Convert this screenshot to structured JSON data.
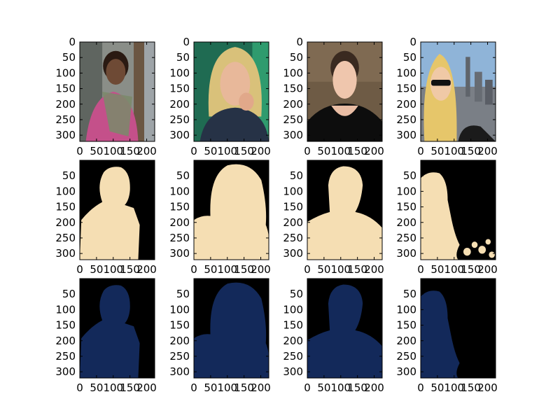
{
  "figure": {
    "background": "#ffffff",
    "rows": 3,
    "cols": 4
  },
  "colors": {
    "mask_foreground": "#f5deb3",
    "mask_background": "#000000",
    "prediction_foreground": "#13295a",
    "prediction_background": "#000000",
    "axes_frame": "#000000"
  },
  "chart_data": [
    {
      "type": "image",
      "row": 1,
      "col": 1,
      "content": "photo",
      "xlim": [
        0,
        224
      ],
      "ylim": [
        320,
        0
      ],
      "xticks": [
        "0",
        "50",
        "100",
        "150",
        "200"
      ],
      "yticks": [
        "0",
        "50",
        "100",
        "150",
        "200",
        "250",
        "300"
      ]
    },
    {
      "type": "image",
      "row": 1,
      "col": 2,
      "content": "photo",
      "xlim": [
        0,
        224
      ],
      "ylim": [
        320,
        0
      ],
      "xticks": [
        "0",
        "50",
        "100",
        "150",
        "200"
      ],
      "yticks": [
        "0",
        "50",
        "100",
        "150",
        "200",
        "250",
        "300"
      ]
    },
    {
      "type": "image",
      "row": 1,
      "col": 3,
      "content": "photo",
      "xlim": [
        0,
        224
      ],
      "ylim": [
        320,
        0
      ],
      "xticks": [
        "0",
        "50",
        "100",
        "150",
        "200"
      ],
      "yticks": [
        "0",
        "50",
        "100",
        "150",
        "200",
        "250",
        "300"
      ]
    },
    {
      "type": "image",
      "row": 1,
      "col": 4,
      "content": "photo",
      "xlim": [
        0,
        224
      ],
      "ylim": [
        320,
        0
      ],
      "xticks": [
        "0",
        "50",
        "100",
        "150",
        "200"
      ],
      "yticks": [
        "0",
        "50",
        "100",
        "150",
        "200",
        "250",
        "300"
      ]
    },
    {
      "type": "image",
      "row": 2,
      "col": 1,
      "content": "mask",
      "xlim": [
        0,
        224
      ],
      "ylim": [
        320,
        0
      ],
      "xticks": [
        "0",
        "50",
        "100",
        "150",
        "200"
      ],
      "yticks": [
        "50",
        "100",
        "150",
        "200",
        "250",
        "300"
      ]
    },
    {
      "type": "image",
      "row": 2,
      "col": 2,
      "content": "mask",
      "xlim": [
        0,
        224
      ],
      "ylim": [
        320,
        0
      ],
      "xticks": [
        "0",
        "50",
        "100",
        "150",
        "200"
      ],
      "yticks": [
        "50",
        "100",
        "150",
        "200",
        "250",
        "300"
      ]
    },
    {
      "type": "image",
      "row": 2,
      "col": 3,
      "content": "mask",
      "xlim": [
        0,
        224
      ],
      "ylim": [
        320,
        0
      ],
      "xticks": [
        "0",
        "50",
        "100",
        "150",
        "200"
      ],
      "yticks": [
        "50",
        "100",
        "150",
        "200",
        "250",
        "300"
      ]
    },
    {
      "type": "image",
      "row": 2,
      "col": 4,
      "content": "mask",
      "xlim": [
        0,
        224
      ],
      "ylim": [
        320,
        0
      ],
      "xticks": [
        "0",
        "50",
        "100",
        "150",
        "200"
      ],
      "yticks": [
        "50",
        "100",
        "150",
        "200",
        "250",
        "300"
      ]
    },
    {
      "type": "image",
      "row": 3,
      "col": 1,
      "content": "prediction",
      "xlim": [
        0,
        224
      ],
      "ylim": [
        320,
        0
      ],
      "xticks": [
        "0",
        "50",
        "100",
        "150",
        "200"
      ],
      "yticks": [
        "50",
        "100",
        "150",
        "200",
        "250",
        "300"
      ]
    },
    {
      "type": "image",
      "row": 3,
      "col": 2,
      "content": "prediction",
      "xlim": [
        0,
        224
      ],
      "ylim": [
        320,
        0
      ],
      "xticks": [
        "0",
        "50",
        "100",
        "150",
        "200"
      ],
      "yticks": [
        "50",
        "100",
        "150",
        "200",
        "250",
        "300"
      ]
    },
    {
      "type": "image",
      "row": 3,
      "col": 3,
      "content": "prediction",
      "xlim": [
        0,
        224
      ],
      "ylim": [
        320,
        0
      ],
      "xticks": [
        "0",
        "50",
        "100",
        "150",
        "200"
      ],
      "yticks": [
        "50",
        "100",
        "150",
        "200",
        "250",
        "300"
      ]
    },
    {
      "type": "image",
      "row": 3,
      "col": 4,
      "content": "prediction",
      "xlim": [
        0,
        224
      ],
      "ylim": [
        320,
        0
      ],
      "xticks": [
        "0",
        "50",
        "100",
        "150",
        "200"
      ],
      "yticks": [
        "50",
        "100",
        "150",
        "200",
        "250",
        "300"
      ]
    }
  ]
}
